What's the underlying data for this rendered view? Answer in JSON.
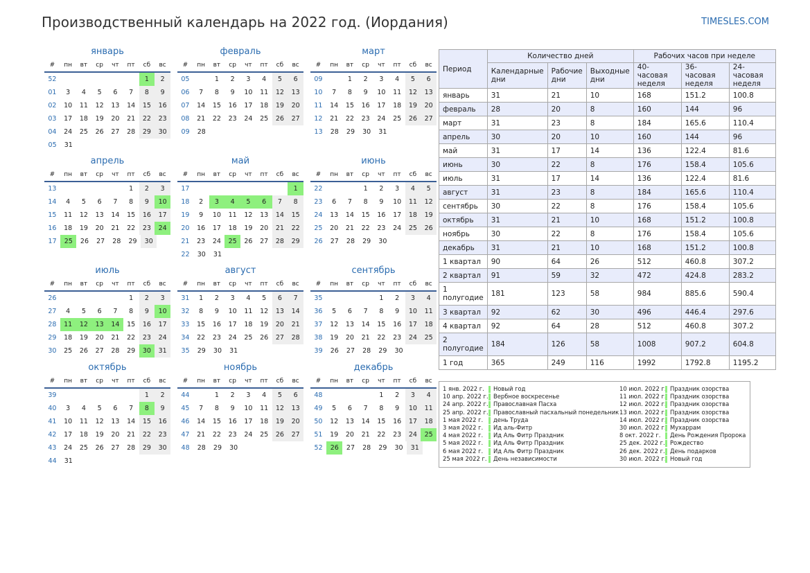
{
  "title": "Производственный календарь на 2022 год. (Иордания)",
  "site": "TIMESLES.COM",
  "colors": {
    "holiday": "#8ef07e",
    "weekend": "#eeeeee",
    "accent": "#2b6cb0",
    "table_alt": "#e8ecfb"
  },
  "weekday_header": [
    "#",
    "пн",
    "вт",
    "ср",
    "чт",
    "пт",
    "сб",
    "вс"
  ],
  "months": [
    {
      "name": "январь",
      "start": 5,
      "days": 31,
      "first_week": 52,
      "holidays": [
        1
      ]
    },
    {
      "name": "февраль",
      "start": 1,
      "days": 28,
      "first_week": 5,
      "holidays": []
    },
    {
      "name": "март",
      "start": 1,
      "days": 31,
      "first_week": 9,
      "holidays": []
    },
    {
      "name": "апрель",
      "start": 4,
      "days": 30,
      "first_week": 13,
      "holidays": [
        10,
        24,
        25
      ]
    },
    {
      "name": "май",
      "start": 6,
      "days": 31,
      "first_week": 17,
      "holidays": [
        1,
        3,
        4,
        5,
        6,
        25
      ]
    },
    {
      "name": "июнь",
      "start": 2,
      "days": 30,
      "first_week": 22,
      "holidays": []
    },
    {
      "name": "июль",
      "start": 4,
      "days": 31,
      "first_week": 26,
      "holidays": [
        10,
        11,
        12,
        13,
        14,
        30
      ]
    },
    {
      "name": "август",
      "start": 0,
      "days": 31,
      "first_week": 31,
      "holidays": []
    },
    {
      "name": "сентябрь",
      "start": 3,
      "days": 30,
      "first_week": 35,
      "holidays": []
    },
    {
      "name": "октябрь",
      "start": 5,
      "days": 31,
      "first_week": 39,
      "holidays": [
        8
      ]
    },
    {
      "name": "ноябрь",
      "start": 1,
      "days": 30,
      "first_week": 44,
      "holidays": []
    },
    {
      "name": "декабрь",
      "start": 3,
      "days": 31,
      "first_week": 48,
      "holidays": [
        25,
        26
      ]
    }
  ],
  "stats": {
    "h_period": "Период",
    "h_days": "Количество дней",
    "h_hours": "Рабочих часов при неделе",
    "sub": [
      "Календарные дни",
      "Рабочие дни",
      "Выходные дни",
      "40-часовая неделя",
      "36-часовая неделя",
      "24-часовая неделя"
    ],
    "rows": [
      [
        "январь",
        "31",
        "21",
        "10",
        "168",
        "151.2",
        "100.8"
      ],
      [
        "февраль",
        "28",
        "20",
        "8",
        "160",
        "144",
        "96"
      ],
      [
        "март",
        "31",
        "23",
        "8",
        "184",
        "165.6",
        "110.4"
      ],
      [
        "апрель",
        "30",
        "20",
        "10",
        "160",
        "144",
        "96"
      ],
      [
        "май",
        "31",
        "17",
        "14",
        "136",
        "122.4",
        "81.6"
      ],
      [
        "июнь",
        "30",
        "22",
        "8",
        "176",
        "158.4",
        "105.6"
      ],
      [
        "июль",
        "31",
        "17",
        "14",
        "136",
        "122.4",
        "81.6"
      ],
      [
        "август",
        "31",
        "23",
        "8",
        "184",
        "165.6",
        "110.4"
      ],
      [
        "сентябрь",
        "30",
        "22",
        "8",
        "176",
        "158.4",
        "105.6"
      ],
      [
        "октябрь",
        "31",
        "21",
        "10",
        "168",
        "151.2",
        "100.8"
      ],
      [
        "ноябрь",
        "30",
        "22",
        "8",
        "176",
        "158.4",
        "105.6"
      ],
      [
        "декабрь",
        "31",
        "21",
        "10",
        "168",
        "151.2",
        "100.8"
      ],
      [
        "1 квартал",
        "90",
        "64",
        "26",
        "512",
        "460.8",
        "307.2"
      ],
      [
        "2 квартал",
        "91",
        "59",
        "32",
        "472",
        "424.8",
        "283.2"
      ],
      [
        "1 полугодие",
        "181",
        "123",
        "58",
        "984",
        "885.6",
        "590.4"
      ],
      [
        "3 квартал",
        "92",
        "62",
        "30",
        "496",
        "446.4",
        "297.6"
      ],
      [
        "4 квартал",
        "92",
        "64",
        "28",
        "512",
        "460.8",
        "307.2"
      ],
      [
        "2 полугодие",
        "184",
        "126",
        "58",
        "1008",
        "907.2",
        "604.8"
      ],
      [
        "1 год",
        "365",
        "249",
        "116",
        "1992",
        "1792.8",
        "1195.2"
      ]
    ]
  },
  "holidays_list": [
    [
      {
        "date": "1 янв. 2022 г.",
        "name": "Новый год"
      },
      {
        "date": "10 апр. 2022 г.",
        "name": "Вербное воскресенье"
      },
      {
        "date": "24 апр. 2022 г.",
        "name": "Православная Пасха"
      },
      {
        "date": "25 апр. 2022 г.",
        "name": "Православный пасхальный понедельник"
      },
      {
        "date": "1 мая 2022 г.",
        "name": "день Труда"
      },
      {
        "date": "3 мая 2022 г.",
        "name": "Ид аль-Фитр"
      },
      {
        "date": "4 мая 2022 г.",
        "name": "Ид Аль Фитр Праздник"
      },
      {
        "date": "5 мая 2022 г.",
        "name": "Ид Аль Фитр Праздник"
      },
      {
        "date": "6 мая 2022 г.",
        "name": "Ид Аль Фитр Праздник"
      },
      {
        "date": "25 мая 2022 г.",
        "name": "День независимости"
      }
    ],
    [
      {
        "date": "10 июл. 2022 г.",
        "name": "Праздник озорства"
      },
      {
        "date": "11 июл. 2022 г.",
        "name": "Праздник озорства"
      },
      {
        "date": "12 июл. 2022 г.",
        "name": "Праздник озорства"
      },
      {
        "date": "13 июл. 2022 г.",
        "name": "Праздник озорства"
      },
      {
        "date": "14 июл. 2022 г.",
        "name": "Праздник озорства"
      },
      {
        "date": "30 июл. 2022 г.",
        "name": "Мухаррам"
      },
      {
        "date": "8 окт. 2022 г.",
        "name": "День Рождения Пророка"
      },
      {
        "date": "25 дек. 2022 г.",
        "name": "Рождество"
      },
      {
        "date": "26 дек. 2022 г.",
        "name": "День подарков"
      },
      {
        "date": "30 июл. 2022 г.",
        "name": "Новый год"
      }
    ]
  ]
}
